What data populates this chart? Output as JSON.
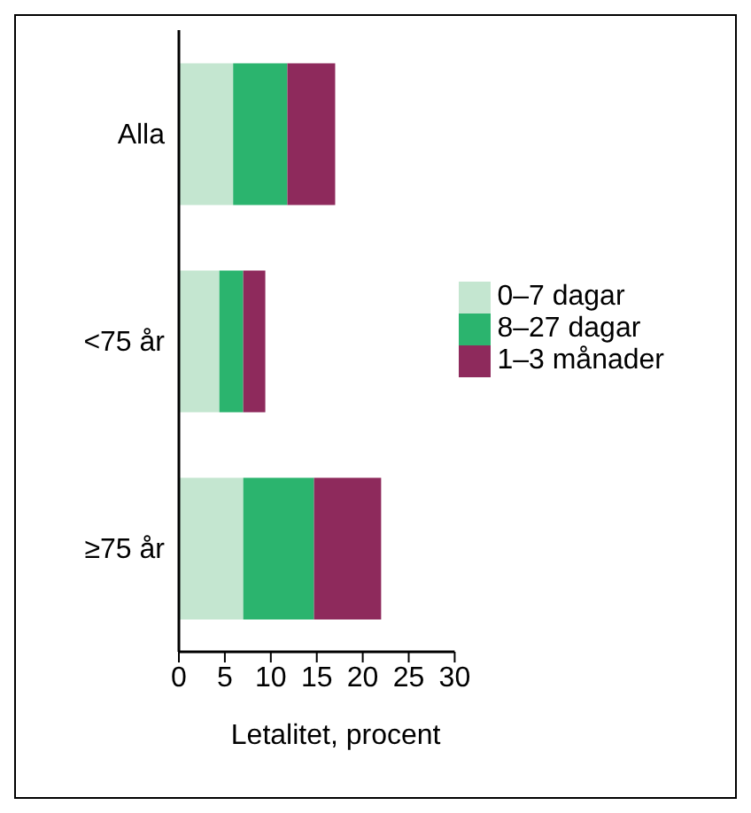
{
  "chart_data": {
    "type": "bar",
    "orientation": "horizontal",
    "stacked": true,
    "categories": [
      "Alla",
      "<75 år",
      "≥75 år"
    ],
    "series": [
      {
        "name": "0–7 dagar",
        "color": "#c4e6d0",
        "values": [
          5.9,
          4.4,
          7.0
        ]
      },
      {
        "name": "8–27 dagar",
        "color": "#2bb46e",
        "values": [
          5.9,
          2.6,
          7.7
        ]
      },
      {
        "name": "1–3 månader",
        "color": "#8e2a5c",
        "values": [
          5.2,
          2.4,
          7.3
        ]
      }
    ],
    "xlim": [
      0,
      30
    ],
    "xticks": [
      0,
      5,
      10,
      15,
      20,
      25,
      30
    ],
    "xlabel": "Letalitet, procent",
    "legend": "right",
    "grid": false
  }
}
